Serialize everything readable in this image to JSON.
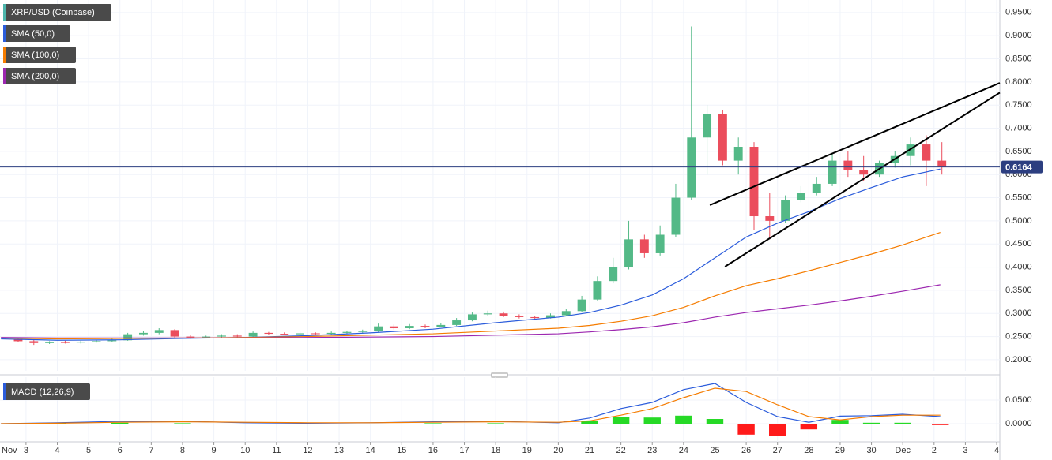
{
  "chart_data": [
    {
      "type": "candlestick",
      "title": "XRP/USD (Coinbase)",
      "up_color": "#53b987",
      "down_color": "#eb4d5c",
      "x": [
        2.75,
        3.25,
        3.75,
        4.25,
        4.75,
        5.25,
        5.75,
        6.25,
        6.75,
        7.25,
        7.75,
        8.25,
        8.75,
        9.25,
        9.75,
        10.25,
        10.75,
        11.25,
        11.75,
        12.25,
        12.75,
        13.25,
        13.75,
        14.25,
        14.75,
        15.25,
        15.75,
        16.25,
        16.75,
        17.25,
        17.75,
        18.25,
        18.75,
        19.25,
        19.75,
        20.25,
        20.75,
        21.25,
        21.75,
        22.25,
        22.75,
        23.25,
        23.75,
        24.25,
        24.75,
        25.25,
        25.75,
        26.25,
        26.75,
        27.25,
        27.75,
        28.25,
        28.75,
        29.25,
        29.75,
        30.25,
        30.75,
        31.25,
        31.75,
        32.25
      ],
      "open": [
        0.245,
        0.24,
        0.236,
        0.238,
        0.237,
        0.239,
        0.24,
        0.242,
        0.255,
        0.258,
        0.264,
        0.25,
        0.248,
        0.25,
        0.252,
        0.25,
        0.258,
        0.256,
        0.255,
        0.257,
        0.256,
        0.258,
        0.26,
        0.262,
        0.272,
        0.268,
        0.273,
        0.271,
        0.275,
        0.285,
        0.298,
        0.3,
        0.295,
        0.292,
        0.29,
        0.296,
        0.305,
        0.33,
        0.37,
        0.4,
        0.46,
        0.43,
        0.47,
        0.55,
        0.68,
        0.73,
        0.63,
        0.66,
        0.51,
        0.5,
        0.545,
        0.56,
        0.58,
        0.63,
        0.61,
        0.6,
        0.625,
        0.64,
        0.665,
        0.63
      ],
      "high": [
        0.248,
        0.243,
        0.24,
        0.241,
        0.241,
        0.243,
        0.245,
        0.258,
        0.262,
        0.268,
        0.266,
        0.253,
        0.252,
        0.255,
        0.255,
        0.261,
        0.26,
        0.259,
        0.26,
        0.259,
        0.261,
        0.263,
        0.265,
        0.278,
        0.276,
        0.277,
        0.276,
        0.279,
        0.29,
        0.302,
        0.306,
        0.304,
        0.298,
        0.295,
        0.3,
        0.31,
        0.338,
        0.38,
        0.42,
        0.5,
        0.47,
        0.49,
        0.58,
        0.92,
        0.75,
        0.74,
        0.68,
        0.67,
        0.56,
        0.555,
        0.575,
        0.595,
        0.645,
        0.65,
        0.64,
        0.63,
        0.65,
        0.68,
        0.685,
        0.67
      ],
      "low": [
        0.238,
        0.232,
        0.234,
        0.235,
        0.235,
        0.237,
        0.239,
        0.241,
        0.252,
        0.255,
        0.248,
        0.245,
        0.246,
        0.248,
        0.248,
        0.248,
        0.254,
        0.253,
        0.253,
        0.254,
        0.254,
        0.256,
        0.258,
        0.26,
        0.265,
        0.266,
        0.268,
        0.27,
        0.273,
        0.283,
        0.295,
        0.292,
        0.289,
        0.288,
        0.289,
        0.294,
        0.303,
        0.328,
        0.365,
        0.395,
        0.42,
        0.425,
        0.465,
        0.545,
        0.6,
        0.62,
        0.6,
        0.48,
        0.46,
        0.495,
        0.54,
        0.555,
        0.575,
        0.595,
        0.585,
        0.595,
        0.615,
        0.62,
        0.575,
        0.6
      ],
      "close": [
        0.24,
        0.236,
        0.238,
        0.237,
        0.239,
        0.24,
        0.242,
        0.255,
        0.258,
        0.264,
        0.25,
        0.248,
        0.25,
        0.252,
        0.25,
        0.258,
        0.256,
        0.255,
        0.257,
        0.256,
        0.258,
        0.26,
        0.262,
        0.272,
        0.268,
        0.273,
        0.271,
        0.275,
        0.285,
        0.298,
        0.3,
        0.295,
        0.292,
        0.29,
        0.296,
        0.305,
        0.33,
        0.37,
        0.4,
        0.46,
        0.43,
        0.47,
        0.55,
        0.68,
        0.73,
        0.63,
        0.66,
        0.51,
        0.5,
        0.545,
        0.56,
        0.58,
        0.63,
        0.61,
        0.6,
        0.625,
        0.64,
        0.665,
        0.63,
        0.616
      ],
      "series": [
        {
          "name": "SMA (50,0)",
          "color": "#2b5cdb",
          "x": [
            2.2,
            4,
            6,
            8,
            10,
            12,
            14,
            16,
            18,
            20,
            21,
            22,
            23,
            24,
            25,
            26,
            27,
            28,
            29,
            30,
            31,
            32.2
          ],
          "values": [
            0.245,
            0.242,
            0.243,
            0.246,
            0.248,
            0.252,
            0.258,
            0.266,
            0.28,
            0.292,
            0.302,
            0.318,
            0.34,
            0.375,
            0.42,
            0.465,
            0.495,
            0.52,
            0.548,
            0.572,
            0.595,
            0.612
          ]
        },
        {
          "name": "SMA (100,0)",
          "color": "#f57c00",
          "x": [
            2.2,
            4,
            6,
            8,
            10,
            12,
            14,
            16,
            18,
            20,
            21,
            22,
            23,
            24,
            25,
            26,
            27,
            28,
            29,
            30,
            31,
            32.2
          ],
          "values": [
            0.247,
            0.245,
            0.246,
            0.247,
            0.248,
            0.25,
            0.253,
            0.256,
            0.262,
            0.268,
            0.274,
            0.283,
            0.295,
            0.313,
            0.338,
            0.36,
            0.375,
            0.392,
            0.41,
            0.428,
            0.448,
            0.475
          ]
        },
        {
          "name": "SMA (200,0)",
          "color": "#9c27b0",
          "x": [
            2.2,
            4,
            6,
            8,
            10,
            12,
            14,
            16,
            18,
            20,
            21,
            22,
            23,
            24,
            25,
            26,
            27,
            28,
            29,
            30,
            31,
            32.2
          ],
          "values": [
            0.248,
            0.247,
            0.247,
            0.247,
            0.247,
            0.248,
            0.249,
            0.25,
            0.253,
            0.256,
            0.26,
            0.265,
            0.271,
            0.28,
            0.292,
            0.302,
            0.31,
            0.318,
            0.327,
            0.337,
            0.348,
            0.362
          ]
        }
      ],
      "trendlines": [
        {
          "x": [
            24.84,
            34.1
          ],
          "y": [
            0.534,
            0.798
          ]
        },
        {
          "x": [
            25.32,
            34.1
          ],
          "y": [
            0.401,
            0.777
          ]
        }
      ],
      "trendline_color": "#000000",
      "last_price": 0.6164,
      "last_price_color": "#2c3e80",
      "xlim": [
        2.17,
        34.1
      ],
      "ylim": [
        0.176,
        0.977
      ],
      "yticks": [
        {
          "value": 0.2,
          "label": "0.2000"
        },
        {
          "value": 0.25,
          "label": "0.2500"
        },
        {
          "value": 0.3,
          "label": "0.3000"
        },
        {
          "value": 0.35,
          "label": "0.3500"
        },
        {
          "value": 0.4,
          "label": "0.4000"
        },
        {
          "value": 0.45,
          "label": "0.4500"
        },
        {
          "value": 0.5,
          "label": "0.5000"
        },
        {
          "value": 0.55,
          "label": "0.5500"
        },
        {
          "value": 0.6,
          "label": "0.6000"
        },
        {
          "value": 0.65,
          "label": "0.6500"
        },
        {
          "value": 0.7,
          "label": "0.7000"
        },
        {
          "value": 0.75,
          "label": "0.7500"
        },
        {
          "value": 0.8,
          "label": "0.8000"
        },
        {
          "value": 0.85,
          "label": "0.8500"
        },
        {
          "value": 0.9,
          "label": "0.9000"
        },
        {
          "value": 0.95,
          "label": "0.9500"
        }
      ],
      "grid": true
    },
    {
      "type": "macd",
      "title": "MACD (12,26,9)",
      "color": "#2b5cdb",
      "x": [
        2.2,
        4,
        6,
        8,
        10,
        12,
        14,
        16,
        18,
        20,
        21,
        22,
        23,
        24,
        25,
        26,
        27,
        28,
        29,
        30,
        31,
        32.2
      ],
      "series": [
        {
          "color": "#2b5cdb",
          "values": [
            0.0,
            0.002,
            0.005,
            0.005,
            0.002,
            0.001,
            0.002,
            0.004,
            0.005,
            0.002,
            0.012,
            0.032,
            0.045,
            0.072,
            0.085,
            0.045,
            0.015,
            0.003,
            0.016,
            0.017,
            0.02,
            0.015
          ]
        },
        {
          "color": "#f57c00",
          "values": [
            0.0,
            0.001,
            0.003,
            0.004,
            0.003,
            0.002,
            0.002,
            0.003,
            0.004,
            0.003,
            0.006,
            0.018,
            0.032,
            0.055,
            0.075,
            0.068,
            0.04,
            0.015,
            0.008,
            0.015,
            0.018,
            0.018
          ]
        }
      ],
      "histogram": [
        0,
        0.001,
        0.002,
        0.001,
        -0.001,
        -0.001,
        0,
        0.001,
        0.001,
        -0.001,
        0.006,
        0.014,
        0.013,
        0.017,
        0.01,
        -0.023,
        -0.025,
        -0.012,
        0.008,
        0.002,
        0.002,
        -0.003
      ],
      "hist_up_color": "#26d926",
      "hist_down_color": "#ff1a1a",
      "xlim": [
        2.17,
        34.1
      ],
      "ylim": [
        -0.0383,
        0.0983
      ],
      "yticks": [
        {
          "value": 0,
          "label": "0.0000"
        },
        {
          "value": 0.05,
          "label": "0.0500"
        }
      ],
      "xticks": [
        {
          "value": 2,
          "label": "Nov"
        },
        3,
        4,
        5,
        6,
        7,
        8,
        9,
        10,
        11,
        12,
        13,
        14,
        15,
        16,
        17,
        18,
        19,
        20,
        21,
        22,
        23,
        24,
        25,
        26,
        27,
        28,
        29,
        30,
        {
          "value": 31,
          "label": "Dec"
        },
        {
          "value": 32,
          "label": "2"
        },
        {
          "value": 33,
          "label": "3"
        },
        {
          "value": 34,
          "label": "4"
        }
      ],
      "grid": true
    }
  ]
}
